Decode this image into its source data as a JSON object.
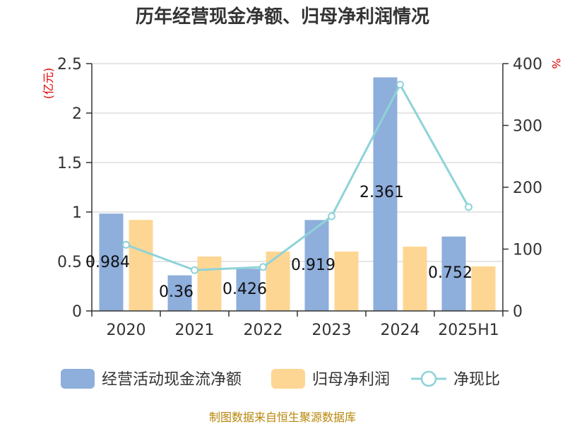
{
  "title": "历年经营现金净额、归母净利润情况",
  "source": "制图数据来自恒生聚源数据库",
  "colors": {
    "cash": "#8eaedb",
    "profit": "#fed693",
    "ratio": "#8ed3d8",
    "axis": "#333333",
    "grid": "#cccccc",
    "unit": "#e00000"
  },
  "chart_data": {
    "type": "bar",
    "title": "历年经营现金净额、归母净利润情况",
    "categories": [
      "2020",
      "2021",
      "2022",
      "2023",
      "2024",
      "2025H1"
    ],
    "y_left": {
      "unit": "亿元",
      "unit_label": "(亿元)",
      "min": 0,
      "max": 2.5,
      "ticks": [
        "0",
        "0.5",
        "1",
        "1.5",
        "2",
        "2.5"
      ]
    },
    "y_right": {
      "unit": "%",
      "min": 0,
      "max": 400,
      "ticks": [
        "0",
        "100",
        "200",
        "300",
        "400"
      ]
    },
    "series": [
      {
        "name": "经营活动现金流净额",
        "type": "bar",
        "axis": "left",
        "values": [
          0.984,
          0.36,
          0.426,
          0.919,
          2.361,
          0.752
        ],
        "labels": [
          "0.984",
          "0.36",
          "0.426",
          "0.919",
          "2.361",
          "0.752"
        ]
      },
      {
        "name": "归母净利润",
        "type": "bar",
        "axis": "left",
        "values": [
          0.92,
          0.55,
          0.6,
          0.6,
          0.65,
          0.45
        ]
      },
      {
        "name": "净现比",
        "type": "line",
        "axis": "right",
        "values": [
          107,
          66,
          71,
          153,
          366,
          168
        ]
      }
    ],
    "grid": true,
    "legend": "bottom"
  }
}
